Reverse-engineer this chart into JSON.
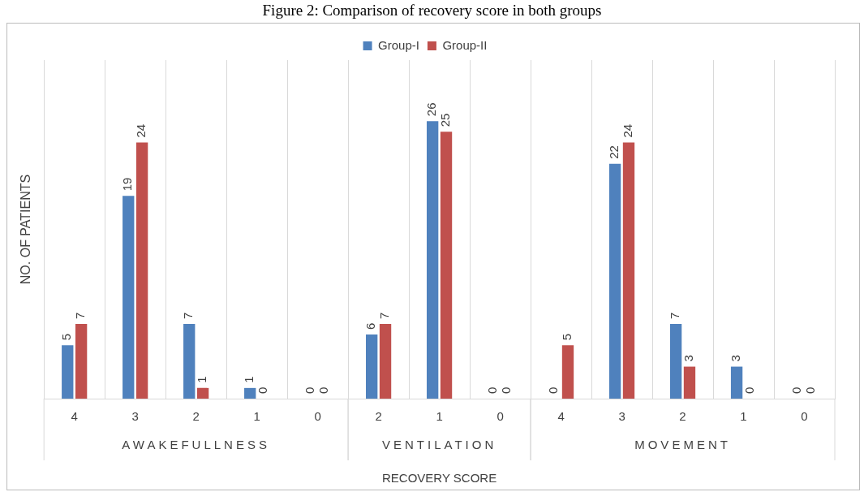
{
  "chart_data": {
    "type": "bar",
    "title": "Figure 2: Comparison of recovery score in both groups",
    "xlabel": "RECOVERY SCORE",
    "ylabel": "NO. OF PATIENTS",
    "categories": [
      "4",
      "3",
      "2",
      "1",
      "0",
      "2",
      "1",
      "0",
      "4",
      "3",
      "2",
      "1",
      "0"
    ],
    "series": [
      {
        "name": "Group-I",
        "color": "#4f81bd",
        "values": [
          5,
          19,
          7,
          1,
          0,
          6,
          26,
          0,
          0,
          22,
          7,
          3,
          0
        ]
      },
      {
        "name": "Group-II",
        "color": "#c0504d",
        "values": [
          7,
          24,
          1,
          0,
          0,
          7,
          25,
          0,
          5,
          24,
          3,
          0,
          0
        ]
      }
    ],
    "annotations": [
      "AWAKEFULLNESS",
      "VENTILATION",
      "MOVEMENT"
    ],
    "data_labels": true,
    "grid": "x",
    "legend": "top",
    "tick_labels": "x"
  }
}
